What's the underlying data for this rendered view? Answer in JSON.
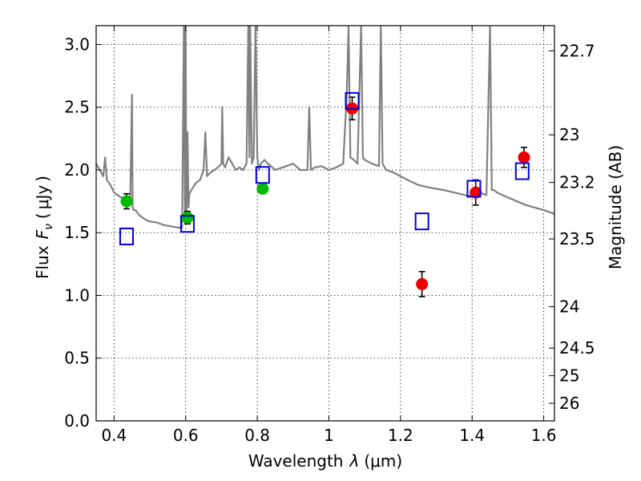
{
  "chart_data": {
    "type": "scatter",
    "xlabel": "Wavelength",
    "xlabel_symbol": "λ",
    "xlabel_unit": "(μm)",
    "ylabel": "Flux",
    "ylabel_symbol": "F",
    "ylabel_subscript": "ν",
    "ylabel_unit_open": "(",
    "ylabel_unit": "μJy",
    "ylabel_unit_close": ")",
    "y2label": "Magnitude (AB)",
    "xlim": [
      0.35,
      1.63
    ],
    "ylim": [
      0.0,
      3.15
    ],
    "grid": true,
    "x_ticks": [
      {
        "value": 0.4,
        "label": "0.4"
      },
      {
        "value": 0.6,
        "label": "0.6"
      },
      {
        "value": 0.8,
        "label": "0.8"
      },
      {
        "value": 1.0,
        "label": "1"
      },
      {
        "value": 1.2,
        "label": "1.2"
      },
      {
        "value": 1.4,
        "label": "1.4"
      },
      {
        "value": 1.6,
        "label": "1.6"
      }
    ],
    "y_ticks": [
      {
        "value": 0.0,
        "label": "0.0"
      },
      {
        "value": 0.5,
        "label": "0.5"
      },
      {
        "value": 1.0,
        "label": "1.0"
      },
      {
        "value": 1.5,
        "label": "1.5"
      },
      {
        "value": 2.0,
        "label": "2.0"
      },
      {
        "value": 2.5,
        "label": "2.5"
      },
      {
        "value": 3.0,
        "label": "3.0"
      }
    ],
    "y2_ticks": [
      {
        "flux": 2.95,
        "label": "22.7"
      },
      {
        "flux": 2.28,
        "label": "23"
      },
      {
        "flux": 1.9,
        "label": "23.2"
      },
      {
        "flux": 1.45,
        "label": "23.5"
      },
      {
        "flux": 0.91,
        "label": "24"
      },
      {
        "flux": 0.58,
        "label": "24.5"
      },
      {
        "flux": 0.36,
        "label": "25"
      },
      {
        "flux": 0.14,
        "label": "26"
      }
    ],
    "series": [
      {
        "kind": "model-spectrum",
        "color": "#808080",
        "x": [
          0.35,
          0.36,
          0.37,
          0.375,
          0.38,
          0.39,
          0.4,
          0.41,
          0.42,
          0.43,
          0.44,
          0.445,
          0.45,
          0.452,
          0.455,
          0.46,
          0.47,
          0.48,
          0.49,
          0.5,
          0.52,
          0.54,
          0.56,
          0.58,
          0.59,
          0.595,
          0.598,
          0.6,
          0.602,
          0.605,
          0.608,
          0.61,
          0.612,
          0.62,
          0.63,
          0.64,
          0.65,
          0.655,
          0.66,
          0.67,
          0.68,
          0.69,
          0.7,
          0.702,
          0.705,
          0.71,
          0.72,
          0.73,
          0.74,
          0.75,
          0.76,
          0.77,
          0.775,
          0.778,
          0.78,
          0.785,
          0.79,
          0.795,
          0.8,
          0.805,
          0.81,
          0.82,
          0.83,
          0.85,
          0.87,
          0.9,
          0.92,
          0.94,
          0.945,
          0.95,
          0.96,
          0.98,
          1.0,
          1.02,
          1.04,
          1.05,
          1.055,
          1.06,
          1.07,
          1.08,
          1.09,
          1.095,
          1.1,
          1.12,
          1.14,
          1.145,
          1.15,
          1.16,
          1.18,
          1.2,
          1.22,
          1.25,
          1.28,
          1.3,
          1.32,
          1.35,
          1.38,
          1.4,
          1.42,
          1.44,
          1.45,
          1.455,
          1.46,
          1.47,
          1.5,
          1.55,
          1.6,
          1.63
        ],
        "y": [
          2.05,
          2.0,
          1.95,
          2.1,
          1.92,
          1.88,
          1.82,
          1.8,
          1.78,
          1.76,
          1.74,
          1.72,
          2.6,
          1.7,
          1.68,
          1.68,
          1.64,
          1.62,
          1.6,
          1.59,
          1.58,
          1.56,
          1.55,
          1.54,
          1.54,
          3.15,
          1.6,
          3.15,
          1.6,
          2.3,
          1.7,
          1.8,
          1.82,
          1.86,
          1.9,
          1.92,
          2.0,
          2.3,
          1.95,
          1.98,
          2.0,
          2.02,
          2.05,
          2.5,
          2.05,
          2.02,
          2.1,
          2.05,
          2.0,
          2.02,
          2.0,
          2.05,
          3.15,
          2.1,
          3.15,
          2.05,
          2.1,
          3.15,
          2.1,
          2.0,
          2.05,
          2.08,
          2.05,
          2.0,
          2.02,
          2.05,
          2.0,
          2.0,
          2.5,
          2.0,
          2.02,
          2.03,
          2.0,
          2.02,
          2.05,
          2.6,
          3.15,
          2.1,
          2.08,
          2.05,
          3.15,
          2.1,
          2.08,
          2.05,
          2.03,
          3.15,
          2.05,
          2.0,
          1.98,
          1.95,
          1.92,
          1.88,
          1.86,
          1.85,
          1.84,
          1.82,
          1.8,
          1.79,
          1.82,
          1.8,
          3.15,
          1.84,
          1.84,
          1.82,
          1.78,
          1.72,
          1.68,
          1.65
        ]
      },
      {
        "kind": "observed-filled",
        "color": "#00bb00",
        "x": [
          0.435,
          0.605,
          0.815
        ],
        "y": [
          1.75,
          1.62,
          1.85
        ],
        "yerr": [
          0.06,
          0.05,
          0.03
        ]
      },
      {
        "kind": "observed-filled",
        "color": "#ee0000",
        "x": [
          1.065,
          1.26,
          1.41,
          1.545
        ],
        "y": [
          2.49,
          1.09,
          1.82,
          2.1
        ],
        "yerr": [
          0.09,
          0.1,
          0.1,
          0.08
        ]
      },
      {
        "kind": "model-photometry-open-square",
        "color": "#0000dd",
        "x": [
          0.435,
          0.605,
          0.815,
          1.065,
          1.26,
          1.405,
          1.54
        ],
        "y": [
          1.47,
          1.57,
          1.96,
          2.55,
          1.59,
          1.85,
          1.99
        ]
      }
    ]
  }
}
